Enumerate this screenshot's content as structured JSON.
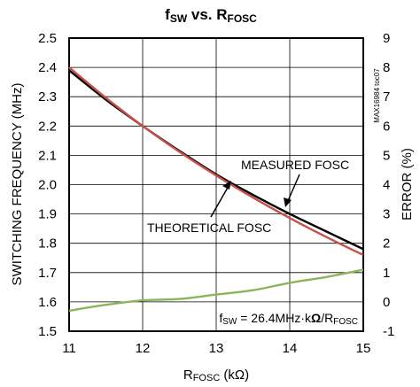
{
  "chart_data": {
    "type": "line",
    "title": {
      "main": "f",
      "main_sub": "SW",
      "vs": " vs. R",
      "vs_sub": "FOSC"
    },
    "xlabel": {
      "main": "R",
      "sub": "FOSC",
      "unit": " (kΩ)"
    },
    "ylabel": "SWITCHING FREQUENCY (MHz)",
    "y2label": "ERROR (%)",
    "xlim": [
      11,
      15
    ],
    "ylim": [
      1.5,
      2.5
    ],
    "y2lim": [
      -1,
      9
    ],
    "x_ticks": [
      "11",
      "12",
      "13",
      "14",
      "15"
    ],
    "y_ticks": [
      "1.5",
      "1.6",
      "1.7",
      "1.8",
      "1.9",
      "2.0",
      "2.1",
      "2.2",
      "2.3",
      "2.4",
      "2.5"
    ],
    "y2_ticks": [
      "-1",
      "0",
      "1",
      "2",
      "3",
      "4",
      "5",
      "6",
      "7",
      "8",
      "9"
    ],
    "grid": true,
    "series": [
      {
        "name": "MEASURED FOSC",
        "axis": "left",
        "color": "#000000",
        "x": [
          11,
          11.5,
          12,
          12.5,
          13,
          13.5,
          14,
          14.5,
          15
        ],
        "y": [
          2.39,
          2.29,
          2.2,
          2.115,
          2.035,
          1.965,
          1.9,
          1.84,
          1.78
        ]
      },
      {
        "name": "THEORETICAL FOSC",
        "axis": "left",
        "color": "#c8504a",
        "x": [
          11,
          11.5,
          12,
          12.5,
          13,
          13.5,
          14,
          14.5,
          15
        ],
        "y": [
          2.4,
          2.296,
          2.2,
          2.112,
          2.031,
          1.956,
          1.886,
          1.821,
          1.76
        ]
      },
      {
        "axis": "right",
        "color": "#8ab55a",
        "x": [
          11,
          11.5,
          12,
          12.5,
          13,
          13.5,
          14,
          14.5,
          15
        ],
        "y": [
          -0.3,
          -0.1,
          0.05,
          0.1,
          0.25,
          0.4,
          0.65,
          0.85,
          1.1
        ]
      }
    ],
    "annotations": {
      "measured": "MEASURED FOSC",
      "theoretical": "THEORETICAL FOSC",
      "formula": {
        "a": "f",
        "a_sub": "SW",
        "b": " = 26.4MHz·k",
        "omega": "Ω",
        "c": "/R",
        "c_sub": "FOSC"
      },
      "partnum": "MAX16984 toc07"
    }
  }
}
